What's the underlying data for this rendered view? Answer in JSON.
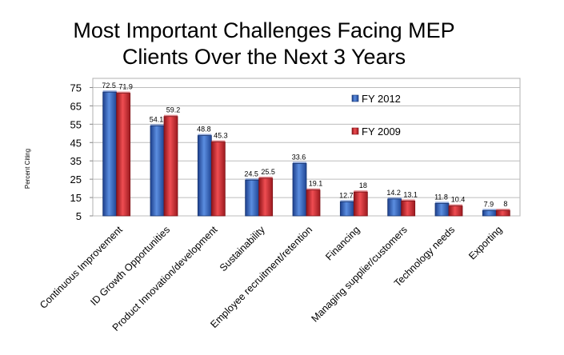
{
  "chart_data": {
    "type": "bar",
    "title_lines": [
      "Most Important Challenges Facing MEP",
      "Clients Over the Next 3 Years"
    ],
    "ylabel": "Percent Citing",
    "xlabel": "",
    "ylim": [
      5,
      80
    ],
    "yticks": [
      5,
      15,
      25,
      35,
      45,
      55,
      65,
      75
    ],
    "grid": true,
    "legend_position": "top-right",
    "categories": [
      "Continuous Improvement",
      "ID Growth Opportunities",
      "Product Innovation/development",
      "Sustainability",
      "Employee recruitment/retention",
      "Financing",
      "Managing supplier/customers",
      "Technology needs",
      "Exporting"
    ],
    "series": [
      {
        "name": "FY 2012",
        "color": "#2f5bb7",
        "values": [
          72.5,
          54.1,
          48.8,
          24.5,
          33.6,
          12.7,
          14.2,
          11.8,
          7.9
        ]
      },
      {
        "name": "FY 2009",
        "color": "#c9262d",
        "values": [
          71.9,
          59.2,
          45.3,
          25.5,
          19.1,
          18,
          13.1,
          10.4,
          8
        ]
      }
    ]
  }
}
